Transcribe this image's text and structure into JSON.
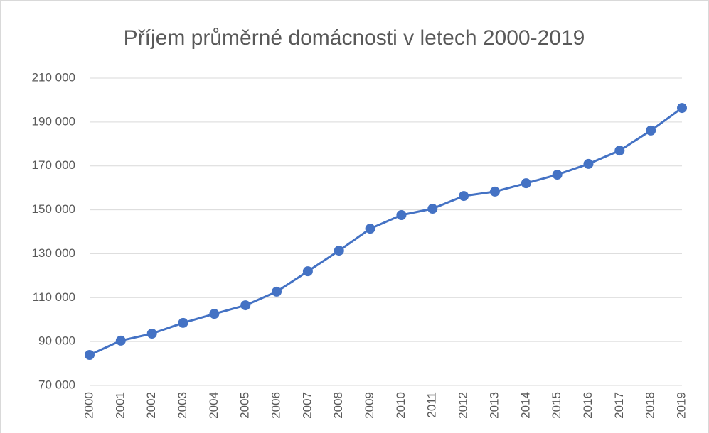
{
  "chart_data": {
    "type": "line",
    "title": "Příjem průměrné domácnosti v letech 2000-2019",
    "categories": [
      "2000",
      "2001",
      "2002",
      "2003",
      "2004",
      "2005",
      "2006",
      "2007",
      "2008",
      "2009",
      "2010",
      "2011",
      "2012",
      "2013",
      "2014",
      "2015",
      "2016",
      "2017",
      "2018",
      "2019"
    ],
    "series": [
      {
        "color": "#4472c4",
        "values": [
          83900,
          90400,
          93600,
          98500,
          102600,
          106500,
          112700,
          122000,
          131400,
          141400,
          147600,
          150500,
          156300,
          158300,
          162100,
          166000,
          170900,
          177000,
          186100,
          196400
        ]
      }
    ],
    "ylim": [
      70000,
      210000
    ],
    "yticks": [
      {
        "value": 70000,
        "label": "70 000"
      },
      {
        "value": 90000,
        "label": "90 000"
      },
      {
        "value": 110000,
        "label": "110 000"
      },
      {
        "value": 130000,
        "label": "130 000"
      },
      {
        "value": 150000,
        "label": "150 000"
      },
      {
        "value": 170000,
        "label": "170 000"
      },
      {
        "value": 190000,
        "label": "190 000"
      },
      {
        "value": 210000,
        "label": "210 000"
      }
    ],
    "grid": true
  }
}
